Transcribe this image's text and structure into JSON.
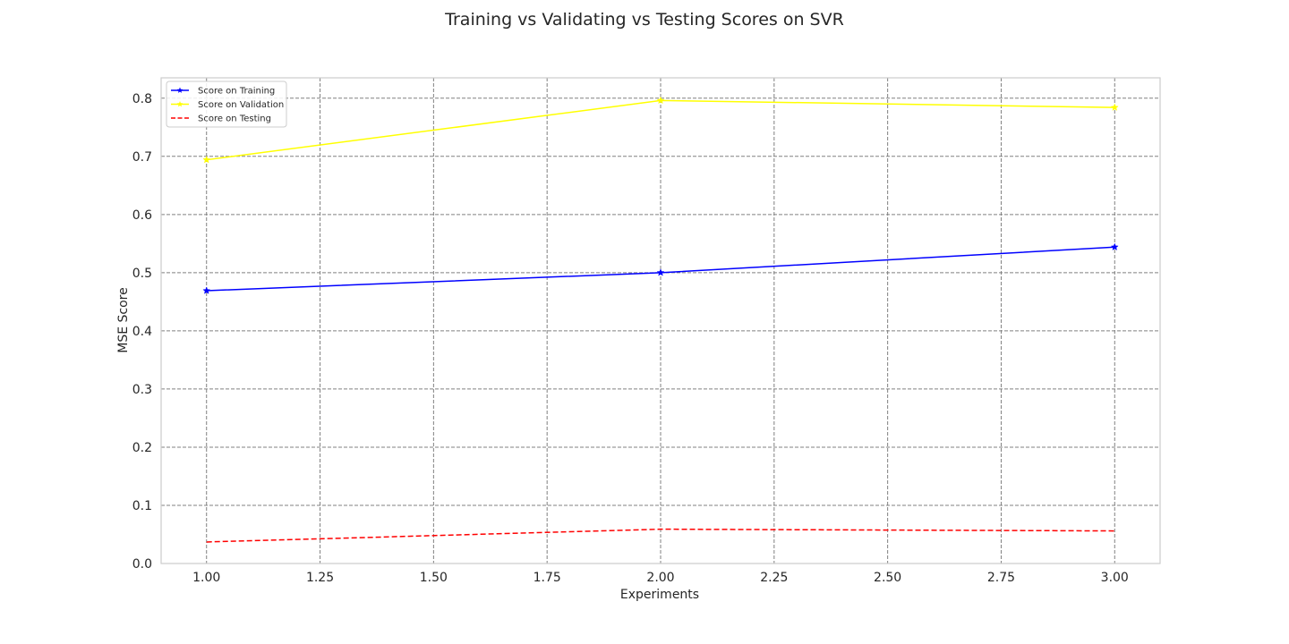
{
  "chart_data": {
    "type": "line",
    "title": "Training vs Validating vs Testing Scores on SVR",
    "xlabel": "Experiments",
    "ylabel": "MSE Score",
    "xlim": [
      0.9,
      3.1
    ],
    "ylim": [
      0.0,
      0.835
    ],
    "x_ticks": [
      "1.00",
      "1.25",
      "1.50",
      "1.75",
      "2.00",
      "2.25",
      "2.50",
      "2.75",
      "3.00"
    ],
    "y_ticks": [
      "0.0",
      "0.1",
      "0.2",
      "0.3",
      "0.4",
      "0.5",
      "0.6",
      "0.7",
      "0.8"
    ],
    "grid": true,
    "legend_position": "top-left",
    "x": [
      1,
      2,
      3
    ],
    "series": [
      {
        "name": "Score on Training",
        "values": [
          0.469,
          0.5,
          0.544
        ],
        "color": "#0000ff",
        "style": "solid",
        "marker": "star"
      },
      {
        "name": "Score on Validation",
        "values": [
          0.694,
          0.796,
          0.784
        ],
        "color": "#ffff00",
        "style": "solid",
        "marker": "star"
      },
      {
        "name": "Score on Testing",
        "values": [
          0.037,
          0.059,
          0.056
        ],
        "color": "#ff0000",
        "style": "dashed",
        "marker": "none"
      }
    ]
  }
}
